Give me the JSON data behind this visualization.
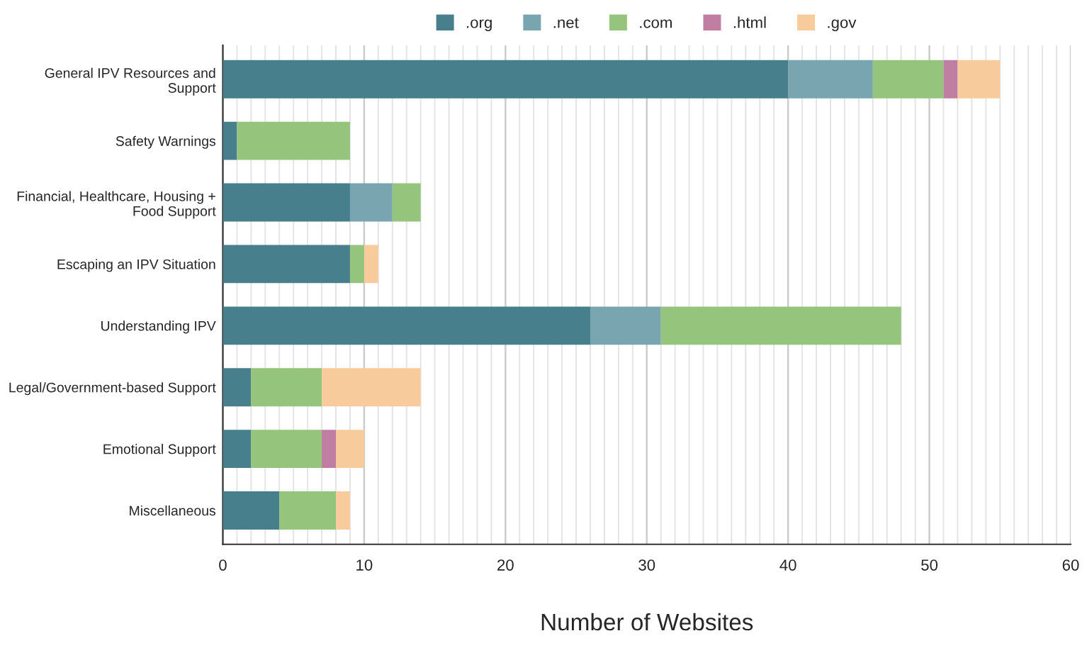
{
  "chart_data": {
    "type": "bar",
    "orientation": "horizontal",
    "stacked": true,
    "xlabel": "Number of Websites",
    "categories": [
      "General IPV Resources and\nSupport",
      "Safety Warnings",
      "Financial, Healthcare, Housing +\nFood Support",
      "Escaping an IPV Situation",
      "Understanding IPV",
      "Legal/Government-based Support",
      "Emotional Support",
      "Miscellaneous"
    ],
    "series": [
      {
        "name": ".org",
        "color": "#477f8c",
        "values": [
          40,
          1,
          9,
          9,
          26,
          2,
          2,
          4
        ]
      },
      {
        "name": ".net",
        "color": "#78a5b0",
        "values": [
          6,
          0,
          3,
          0,
          5,
          0,
          0,
          0
        ]
      },
      {
        "name": ".com",
        "color": "#95c47d",
        "values": [
          5,
          8,
          2,
          1,
          17,
          5,
          5,
          4
        ]
      },
      {
        "name": ".html",
        "color": "#c17ea3",
        "values": [
          1,
          0,
          0,
          0,
          0,
          0,
          1,
          0
        ]
      },
      {
        "name": ".gov",
        "color": "#f8cb9c",
        "values": [
          3,
          0,
          0,
          1,
          0,
          7,
          2,
          1
        ]
      }
    ],
    "xlim": [
      0,
      60
    ],
    "xticks": [
      0,
      10,
      20,
      30,
      40,
      50,
      60
    ],
    "grid": "x",
    "legend": "top"
  }
}
